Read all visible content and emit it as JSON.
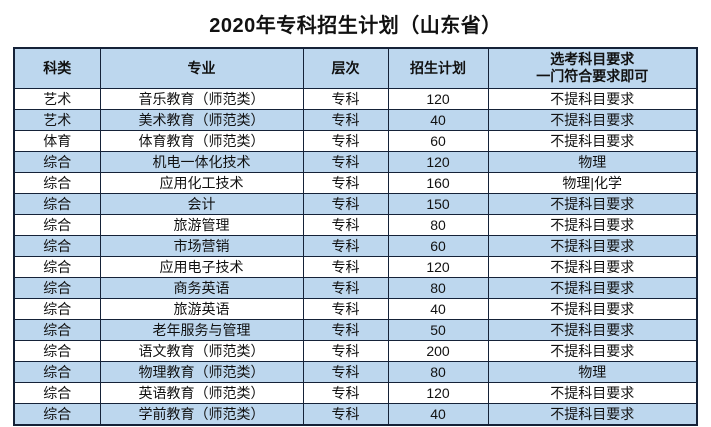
{
  "title": "2020年专科招生计划（山东省）",
  "colors": {
    "border": "#152238",
    "header_bg": "#BDD7EE",
    "alt_row_bg": "#BDD7EE"
  },
  "table": {
    "headers": {
      "category": "科类",
      "major": "专业",
      "level": "层次",
      "plan": "招生计划",
      "requirement_line1": "选考科目要求",
      "requirement_line2": "一门符合要求即可"
    },
    "rows": [
      {
        "category": "艺术",
        "major": "音乐教育（师范类）",
        "level": "专科",
        "plan": "120",
        "requirement": "不提科目要求"
      },
      {
        "category": "艺术",
        "major": "美术教育（师范类）",
        "level": "专科",
        "plan": "40",
        "requirement": "不提科目要求"
      },
      {
        "category": "体育",
        "major": "体育教育（师范类）",
        "level": "专科",
        "plan": "60",
        "requirement": "不提科目要求"
      },
      {
        "category": "综合",
        "major": "机电一体化技术",
        "level": "专科",
        "plan": "120",
        "requirement": "物理"
      },
      {
        "category": "综合",
        "major": "应用化工技术",
        "level": "专科",
        "plan": "160",
        "requirement": "物理|化学"
      },
      {
        "category": "综合",
        "major": "会计",
        "level": "专科",
        "plan": "150",
        "requirement": "不提科目要求"
      },
      {
        "category": "综合",
        "major": "旅游管理",
        "level": "专科",
        "plan": "80",
        "requirement": "不提科目要求"
      },
      {
        "category": "综合",
        "major": "市场营销",
        "level": "专科",
        "plan": "60",
        "requirement": "不提科目要求"
      },
      {
        "category": "综合",
        "major": "应用电子技术",
        "level": "专科",
        "plan": "120",
        "requirement": "不提科目要求"
      },
      {
        "category": "综合",
        "major": "商务英语",
        "level": "专科",
        "plan": "80",
        "requirement": "不提科目要求"
      },
      {
        "category": "综合",
        "major": "旅游英语",
        "level": "专科",
        "plan": "40",
        "requirement": "不提科目要求"
      },
      {
        "category": "综合",
        "major": "老年服务与管理",
        "level": "专科",
        "plan": "50",
        "requirement": "不提科目要求"
      },
      {
        "category": "综合",
        "major": "语文教育（师范类）",
        "level": "专科",
        "plan": "200",
        "requirement": "不提科目要求"
      },
      {
        "category": "综合",
        "major": "物理教育（师范类）",
        "level": "专科",
        "plan": "80",
        "requirement": "物理"
      },
      {
        "category": "综合",
        "major": "英语教育（师范类）",
        "level": "专科",
        "plan": "120",
        "requirement": "不提科目要求"
      },
      {
        "category": "综合",
        "major": "学前教育（师范类）",
        "level": "专科",
        "plan": "40",
        "requirement": "不提科目要求"
      }
    ]
  }
}
